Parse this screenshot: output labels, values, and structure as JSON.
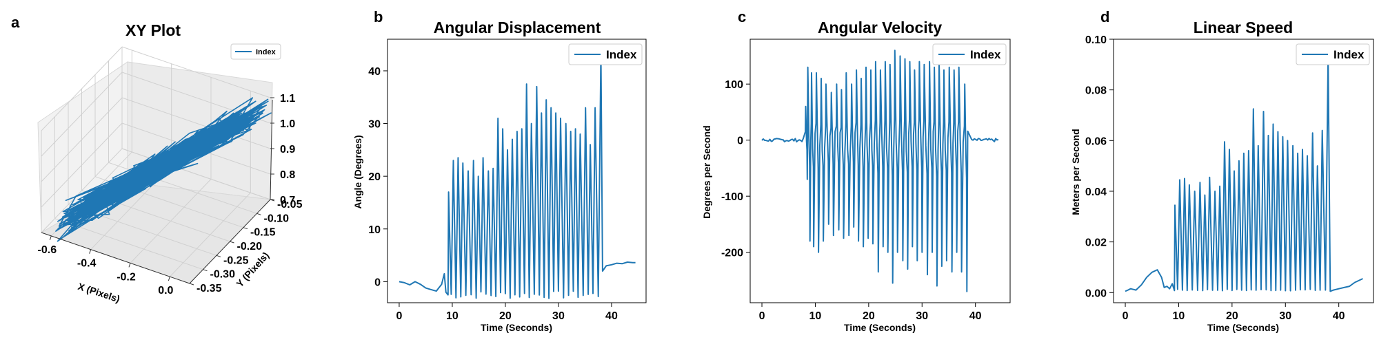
{
  "figure": {
    "panels": [
      {
        "letter": "a",
        "title": "XY Plot"
      },
      {
        "letter": "b",
        "title": "Angular Displacement"
      },
      {
        "letter": "c",
        "title": "Angular Velocity"
      },
      {
        "letter": "d",
        "title": "Linear Speed"
      }
    ],
    "line_color": "#1f77b4"
  },
  "chart_data": [
    {
      "type": "line3d",
      "title": "XY Plot",
      "xlabel": "X (Pixels)",
      "ylabel": "Y (Pixels)",
      "zlabel": "",
      "x_ticks": [
        "-0.6",
        "-0.4",
        "-0.2",
        "0.0"
      ],
      "y_ticks": [
        "-0.35",
        "-0.30",
        "-0.25",
        "-0.20",
        "-0.15",
        "-0.10",
        "-0.05"
      ],
      "z_ticks": [
        "0.7",
        "0.8",
        "0.9",
        "1.0",
        "1.1"
      ],
      "xlim": [
        -0.65,
        0.1
      ],
      "ylim": [
        -0.35,
        -0.05
      ],
      "zlim": [
        0.7,
        1.1
      ],
      "legend": [
        "Index"
      ],
      "legend_position": "top-right",
      "grid": true,
      "series": [
        {
          "name": "Index",
          "description": "dense trajectory cloud oriented diagonally from lower-left to upper-right"
        }
      ]
    },
    {
      "type": "line",
      "title": "Angular Displacement",
      "xlabel": "Time (Seconds)",
      "ylabel": "Angle (Degrees)",
      "xlim": [
        -2.2,
        46.5
      ],
      "ylim": [
        -4,
        46
      ],
      "x_ticks": [
        0,
        10,
        20,
        30,
        40
      ],
      "y_ticks": [
        0,
        10,
        20,
        30,
        40
      ],
      "legend": [
        "Index"
      ],
      "legend_position": "top-right",
      "grid": false,
      "series": [
        {
          "name": "Index",
          "baseline_points": [
            [
              0,
              0
            ],
            [
              1,
              -0.2
            ],
            [
              2,
              -0.6
            ],
            [
              3,
              0
            ],
            [
              4,
              -0.5
            ],
            [
              5,
              -1.2
            ],
            [
              6,
              -1.5
            ],
            [
              7,
              -1.8
            ],
            [
              8,
              -0.5
            ],
            [
              8.5,
              1.5
            ],
            [
              8.8,
              -2
            ]
          ],
          "oscillation": {
            "start": 9.0,
            "end": 38.3,
            "period": 0.93,
            "trough": -2.5
          },
          "peaks": [
            [
              9.3,
              17
            ],
            [
              10.2,
              23
            ],
            [
              11.1,
              23.5
            ],
            [
              12,
              22.5
            ],
            [
              13,
              21
            ],
            [
              14,
              23
            ],
            [
              14.9,
              20
            ],
            [
              15.8,
              23.5
            ],
            [
              16.8,
              21
            ],
            [
              17.7,
              21.5
            ],
            [
              18.6,
              31
            ],
            [
              19.5,
              29
            ],
            [
              20.4,
              25
            ],
            [
              21.3,
              27
            ],
            [
              22.2,
              28.5
            ],
            [
              23.1,
              29
            ],
            [
              24,
              37.5
            ],
            [
              24.9,
              30
            ],
            [
              25.9,
              37
            ],
            [
              26.8,
              32
            ],
            [
              27.7,
              34.5
            ],
            [
              28.6,
              33
            ],
            [
              29.5,
              32
            ],
            [
              30.4,
              31
            ],
            [
              31.4,
              30
            ],
            [
              32.3,
              28.5
            ],
            [
              33.2,
              29
            ],
            [
              34.1,
              28
            ],
            [
              35.1,
              33
            ],
            [
              36,
              26
            ],
            [
              36.9,
              33
            ],
            [
              38,
              43.5
            ]
          ],
          "tail_points": [
            [
              38.3,
              2
            ],
            [
              39,
              3
            ],
            [
              40,
              3.2
            ],
            [
              41,
              3.5
            ],
            [
              42,
              3.4
            ],
            [
              43,
              3.7
            ],
            [
              44,
              3.6
            ],
            [
              44.5,
              3.6
            ]
          ]
        }
      ]
    },
    {
      "type": "line",
      "title": "Angular Velocity",
      "xlabel": "Time (Seconds)",
      "ylabel": "Degrees per Second",
      "xlim": [
        -2.2,
        46.5
      ],
      "ylim": [
        -290,
        180
      ],
      "x_ticks": [
        0,
        10,
        20,
        30,
        40
      ],
      "y_ticks": [
        -200,
        -100,
        0,
        100
      ],
      "legend": [
        "Index"
      ],
      "legend_position": "top-right",
      "grid": false,
      "series": [
        {
          "name": "Index",
          "baseline_range": [
            0,
            44.5
          ],
          "oscillation": {
            "start": 7.8,
            "end": 39.0
          },
          "peaks": [
            [
              8.2,
              60
            ],
            [
              8.6,
              130
            ],
            [
              9.3,
              120
            ],
            [
              10.2,
              120
            ],
            [
              11.1,
              110
            ],
            [
              12,
              100
            ],
            [
              13,
              85
            ],
            [
              14,
              100
            ],
            [
              14.9,
              90
            ],
            [
              15.8,
              120
            ],
            [
              16.8,
              100
            ],
            [
              17.7,
              125
            ],
            [
              18.6,
              110
            ],
            [
              19.5,
              130
            ],
            [
              20.4,
              125
            ],
            [
              21.3,
              140
            ],
            [
              22.2,
              125
            ],
            [
              23.1,
              140
            ],
            [
              24,
              135
            ],
            [
              24.9,
              160
            ],
            [
              25.9,
              150
            ],
            [
              26.8,
              145
            ],
            [
              27.7,
              140
            ],
            [
              28.6,
              125
            ],
            [
              29.5,
              140
            ],
            [
              30.4,
              135
            ],
            [
              31.4,
              140
            ],
            [
              32.3,
              130
            ],
            [
              33.2,
              140
            ],
            [
              34.1,
              125
            ],
            [
              35.1,
              130
            ],
            [
              36,
              125
            ],
            [
              36.9,
              130
            ],
            [
              38,
              100
            ]
          ],
          "troughs": [
            [
              8.5,
              -70
            ],
            [
              9.0,
              -180
            ],
            [
              9.7,
              -190
            ],
            [
              10.6,
              -200
            ],
            [
              11.5,
              -180
            ],
            [
              12.5,
              -150
            ],
            [
              13.4,
              -170
            ],
            [
              14.4,
              -160
            ],
            [
              15.3,
              -175
            ],
            [
              16.3,
              -170
            ],
            [
              17.2,
              -155
            ],
            [
              18.1,
              -180
            ],
            [
              19,
              -190
            ],
            [
              19.9,
              -175
            ],
            [
              20.8,
              -185
            ],
            [
              21.8,
              -235
            ],
            [
              22.7,
              -190
            ],
            [
              23.6,
              -200
            ],
            [
              24.5,
              -255
            ],
            [
              25.4,
              -200
            ],
            [
              26.4,
              -215
            ],
            [
              27.3,
              -230
            ],
            [
              28.2,
              -190
            ],
            [
              29.1,
              -215
            ],
            [
              30,
              -200
            ],
            [
              31,
              -240
            ],
            [
              31.9,
              -200
            ],
            [
              32.8,
              -260
            ],
            [
              33.7,
              -225
            ],
            [
              34.6,
              -215
            ],
            [
              35.6,
              -235
            ],
            [
              36.5,
              -200
            ],
            [
              37.4,
              -235
            ],
            [
              38.4,
              -270
            ]
          ]
        }
      ]
    },
    {
      "type": "line",
      "title": "Linear Speed",
      "xlabel": "Time (Seconds)",
      "ylabel": "Meters per Second",
      "xlim": [
        -2.2,
        46.5
      ],
      "ylim": [
        -0.004,
        0.1
      ],
      "x_ticks": [
        0,
        10,
        20,
        30,
        40
      ],
      "y_ticks": [
        "0.00",
        "0.02",
        "0.04",
        "0.06",
        "0.08",
        "0.10"
      ],
      "legend": [
        "Index"
      ],
      "legend_position": "top-right",
      "grid": false,
      "series": [
        {
          "name": "Index",
          "baseline_points": [
            [
              0,
              0.0005
            ],
            [
              0.5,
              0.001
            ],
            [
              1,
              0.0015
            ],
            [
              2,
              0.001
            ],
            [
              3,
              0.003
            ],
            [
              4,
              0.006
            ],
            [
              5,
              0.008
            ],
            [
              6,
              0.009
            ],
            [
              6.8,
              0.006
            ],
            [
              7.3,
              0.002
            ],
            [
              7.8,
              0.0025
            ],
            [
              8.3,
              0.0015
            ],
            [
              8.8,
              0.0035
            ]
          ],
          "oscillation": {
            "start": 9.0,
            "end": 38.4,
            "period": 0.93,
            "trough": 0.001
          },
          "peaks": [
            [
              9.3,
              0.0345
            ],
            [
              10.2,
              0.0445
            ],
            [
              11.1,
              0.045
            ],
            [
              12,
              0.0425
            ],
            [
              13,
              0.04
            ],
            [
              14,
              0.0435
            ],
            [
              14.9,
              0.0385
            ],
            [
              15.8,
              0.0455
            ],
            [
              16.8,
              0.04
            ],
            [
              17.7,
              0.042
            ],
            [
              18.6,
              0.0595
            ],
            [
              19.5,
              0.0565
            ],
            [
              20.4,
              0.048
            ],
            [
              21.3,
              0.052
            ],
            [
              22.2,
              0.055
            ],
            [
              23.1,
              0.056
            ],
            [
              24,
              0.0725
            ],
            [
              24.9,
              0.058
            ],
            [
              25.9,
              0.0715
            ],
            [
              26.8,
              0.062
            ],
            [
              27.7,
              0.0665
            ],
            [
              28.6,
              0.0635
            ],
            [
              29.5,
              0.0615
            ],
            [
              30.4,
              0.06
            ],
            [
              31.4,
              0.058
            ],
            [
              32.3,
              0.055
            ],
            [
              33.2,
              0.0565
            ],
            [
              34.1,
              0.054
            ],
            [
              35.1,
              0.063
            ],
            [
              36,
              0.05
            ],
            [
              36.9,
              0.064
            ],
            [
              38,
              0.0935
            ]
          ],
          "tail_points": [
            [
              38.4,
              0.0005
            ],
            [
              39,
              0.001
            ],
            [
              40,
              0.0015
            ],
            [
              41,
              0.002
            ],
            [
              42,
              0.0025
            ],
            [
              43,
              0.004
            ],
            [
              44,
              0.005
            ],
            [
              44.5,
              0.0055
            ]
          ]
        }
      ]
    }
  ]
}
